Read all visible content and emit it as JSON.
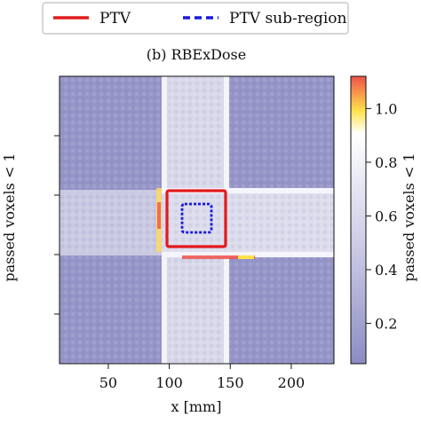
{
  "chart_data": {
    "type": "heatmap",
    "title": "(b) RBExDose",
    "xlabel": "x [mm]",
    "ylabel": "passed voxels < 1",
    "xticks": [
      50,
      100,
      150,
      200
    ],
    "xlim": [
      10,
      235
    ],
    "colorbar": {
      "label": "passed voxels < 1",
      "ticks": [
        "0.2",
        "0.4",
        "0.6",
        "0.8",
        "1.0"
      ],
      "tick_values": [
        0.2,
        0.4,
        0.6,
        0.8,
        1.0
      ],
      "range": [
        0.05,
        1.12
      ],
      "colors": [
        "#8c8cc4",
        "#ffffff",
        "#ffe24a",
        "#f0504a"
      ]
    },
    "background_value": 0.28,
    "cross": {
      "vertical_band_x": [
        95,
        150
      ],
      "horizontal_band_x_end": 235,
      "value": 0.62
    },
    "legend": [
      {
        "label": "PTV",
        "style": "solid",
        "color": "#e31a1c"
      },
      {
        "label": "PTV sub-region",
        "style": "dashed",
        "color": "#1a1adb"
      }
    ],
    "regions": {
      "ptv": {
        "x": [
          98,
          143
        ],
        "color": "#e31a1c"
      },
      "ptv_subregion": {
        "x": [
          108,
          132
        ],
        "color": "#1a1adb"
      }
    }
  }
}
